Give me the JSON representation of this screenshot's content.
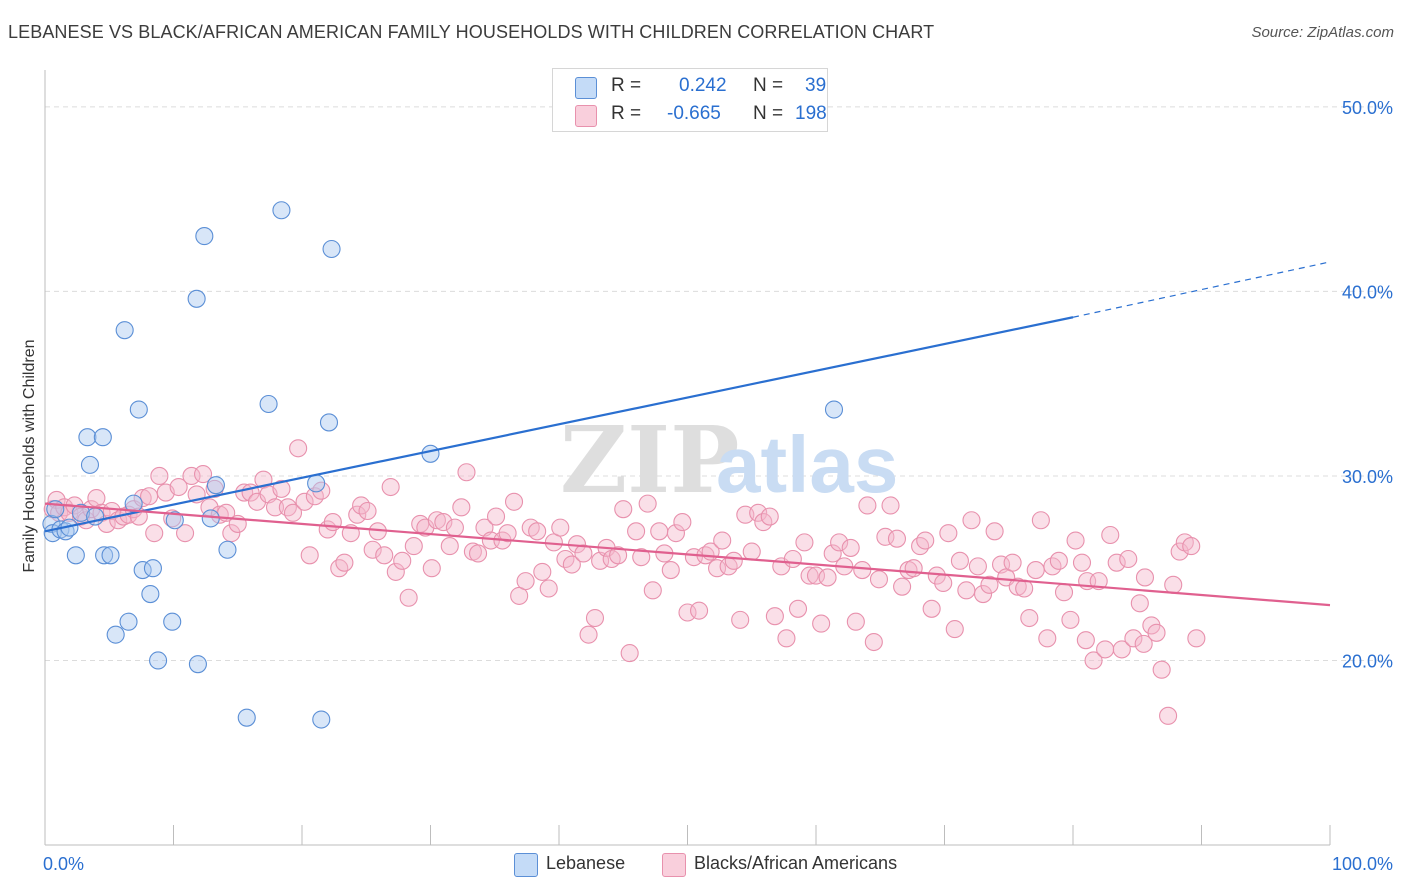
{
  "title": "LEBANESE VS BLACK/AFRICAN AMERICAN FAMILY HOUSEHOLDS WITH CHILDREN CORRELATION CHART",
  "source": "Source: ZipAtlas.com",
  "watermark": {
    "zip": "ZIP",
    "atlas": "atlas"
  },
  "legend_stats": [
    {
      "r_label": "R =",
      "r_value": "0.242",
      "n_label": "N =",
      "n_value": "39",
      "color": "#a8c8f0"
    },
    {
      "r_label": "R =",
      "r_value": "-0.665",
      "n_label": "N =",
      "n_value": "198",
      "color": "#f5b8cb"
    }
  ],
  "legend_bottom": [
    {
      "name": "Lebanese",
      "color": "#a8c8f0"
    },
    {
      "name": "Blacks/African Americans",
      "color": "#f5b8cb"
    }
  ],
  "chart_data": {
    "type": "scatter",
    "title": "LEBANESE VS BLACK/AFRICAN AMERICAN FAMILY HOUSEHOLDS WITH CHILDREN CORRELATION CHART",
    "xlabel": "",
    "ylabel": "Family Households with Children",
    "x_tick_labels": [
      "0.0%",
      "100.0%"
    ],
    "y_tick_labels": [
      "20.0%",
      "30.0%",
      "40.0%",
      "50.0%"
    ],
    "xlim": [
      0,
      100
    ],
    "ylim": [
      10,
      52
    ],
    "y_ticks": [
      20,
      30,
      40,
      50
    ],
    "grid": true,
    "legend_placement": "top-center",
    "series": [
      {
        "name": "Lebanese",
        "color": "#a8c8f0",
        "stroke": "#5b8fd6",
        "trend": {
          "x": [
            0,
            80
          ],
          "y": [
            27.0,
            38.6
          ],
          "dashed_to": [
            100,
            41.6
          ],
          "color": "#2a6fd0"
        },
        "points": [
          [
            0.5,
            27.4
          ],
          [
            0.6,
            26.9
          ],
          [
            0.8,
            28.2
          ],
          [
            1.2,
            27.1
          ],
          [
            1.6,
            27.0
          ],
          [
            1.9,
            27.2
          ],
          [
            2.4,
            25.7
          ],
          [
            2.8,
            28.0
          ],
          [
            3.3,
            32.1
          ],
          [
            3.5,
            30.6
          ],
          [
            3.9,
            27.8
          ],
          [
            4.5,
            32.1
          ],
          [
            4.6,
            25.7
          ],
          [
            5.1,
            25.7
          ],
          [
            5.5,
            21.4
          ],
          [
            6.2,
            37.9
          ],
          [
            6.9,
            28.5
          ],
          [
            7.3,
            33.6
          ],
          [
            7.6,
            24.9
          ],
          [
            8.2,
            23.6
          ],
          [
            8.4,
            25.0
          ],
          [
            8.8,
            20.0
          ],
          [
            9.9,
            22.1
          ],
          [
            10.1,
            27.6
          ],
          [
            11.8,
            39.6
          ],
          [
            11.9,
            19.8
          ],
          [
            12.4,
            43.0
          ],
          [
            12.9,
            27.7
          ],
          [
            13.3,
            29.5
          ],
          [
            14.2,
            26.0
          ],
          [
            15.7,
            16.9
          ],
          [
            17.4,
            33.9
          ],
          [
            18.4,
            44.4
          ],
          [
            21.1,
            29.6
          ],
          [
            21.5,
            16.8
          ],
          [
            22.1,
            32.9
          ],
          [
            22.3,
            42.3
          ],
          [
            30.0,
            31.2
          ],
          [
            61.4,
            33.6
          ],
          [
            6.5,
            22.1
          ]
        ]
      },
      {
        "name": "Blacks/African Americans",
        "color": "#f5b8cb",
        "stroke": "#e891ad",
        "trend": {
          "x": [
            0,
            100
          ],
          "y": [
            28.5,
            23.0
          ],
          "color": "#e0608f"
        },
        "points": [
          [
            0.6,
            28.2
          ],
          [
            0.9,
            28.7
          ],
          [
            1.1,
            28.0
          ],
          [
            1.5,
            28.3
          ],
          [
            1.9,
            28.0
          ],
          [
            2.3,
            28.4
          ],
          [
            2.8,
            27.8
          ],
          [
            3.2,
            27.6
          ],
          [
            3.6,
            28.2
          ],
          [
            4.0,
            28.8
          ],
          [
            4.4,
            28.0
          ],
          [
            4.8,
            27.4
          ],
          [
            5.2,
            28.1
          ],
          [
            5.7,
            27.6
          ],
          [
            6.1,
            27.8
          ],
          [
            6.5,
            27.9
          ],
          [
            6.9,
            28.2
          ],
          [
            7.3,
            27.8
          ],
          [
            7.6,
            28.8
          ],
          [
            8.1,
            28.9
          ],
          [
            8.5,
            26.9
          ],
          [
            8.9,
            30.0
          ],
          [
            9.4,
            29.1
          ],
          [
            9.9,
            27.7
          ],
          [
            10.4,
            29.4
          ],
          [
            10.9,
            26.9
          ],
          [
            11.4,
            30.0
          ],
          [
            11.8,
            29.0
          ],
          [
            12.3,
            30.1
          ],
          [
            12.8,
            28.3
          ],
          [
            13.2,
            29.3
          ],
          [
            13.6,
            27.9
          ],
          [
            14.1,
            28.0
          ],
          [
            14.5,
            26.9
          ],
          [
            15.0,
            27.4
          ],
          [
            15.5,
            29.1
          ],
          [
            16.0,
            29.1
          ],
          [
            16.5,
            28.6
          ],
          [
            17.0,
            29.8
          ],
          [
            17.4,
            29.0
          ],
          [
            17.9,
            28.3
          ],
          [
            18.4,
            29.3
          ],
          [
            18.9,
            28.3
          ],
          [
            19.3,
            28.0
          ],
          [
            19.7,
            31.5
          ],
          [
            20.2,
            28.6
          ],
          [
            20.6,
            25.7
          ],
          [
            21.0,
            28.9
          ],
          [
            21.5,
            29.2
          ],
          [
            22.0,
            27.1
          ],
          [
            22.4,
            27.5
          ],
          [
            22.9,
            25.0
          ],
          [
            23.3,
            25.3
          ],
          [
            23.8,
            26.9
          ],
          [
            24.3,
            27.9
          ],
          [
            24.6,
            28.4
          ],
          [
            25.1,
            28.1
          ],
          [
            25.5,
            26.0
          ],
          [
            25.9,
            27.0
          ],
          [
            26.4,
            25.7
          ],
          [
            26.9,
            29.4
          ],
          [
            27.3,
            24.8
          ],
          [
            27.8,
            25.4
          ],
          [
            28.3,
            23.4
          ],
          [
            28.7,
            26.2
          ],
          [
            29.2,
            27.4
          ],
          [
            29.6,
            27.2
          ],
          [
            30.1,
            25.0
          ],
          [
            30.5,
            27.6
          ],
          [
            31.0,
            27.5
          ],
          [
            31.5,
            26.2
          ],
          [
            31.9,
            27.2
          ],
          [
            32.4,
            28.3
          ],
          [
            32.8,
            30.2
          ],
          [
            33.3,
            25.9
          ],
          [
            33.7,
            25.8
          ],
          [
            34.2,
            27.2
          ],
          [
            34.7,
            26.5
          ],
          [
            35.1,
            27.8
          ],
          [
            35.6,
            26.5
          ],
          [
            36.0,
            26.9
          ],
          [
            36.5,
            28.6
          ],
          [
            36.9,
            23.5
          ],
          [
            37.4,
            24.3
          ],
          [
            37.8,
            27.2
          ],
          [
            38.3,
            27.0
          ],
          [
            38.7,
            24.8
          ],
          [
            39.2,
            23.9
          ],
          [
            39.6,
            26.4
          ],
          [
            40.1,
            27.2
          ],
          [
            40.5,
            25.5
          ],
          [
            41.0,
            25.2
          ],
          [
            41.4,
            26.3
          ],
          [
            41.9,
            25.8
          ],
          [
            42.3,
            21.4
          ],
          [
            42.8,
            22.3
          ],
          [
            43.2,
            25.4
          ],
          [
            43.7,
            26.1
          ],
          [
            44.1,
            25.5
          ],
          [
            44.6,
            25.7
          ],
          [
            45.0,
            28.2
          ],
          [
            45.5,
            20.4
          ],
          [
            46.0,
            27.0
          ],
          [
            46.4,
            25.6
          ],
          [
            46.9,
            28.5
          ],
          [
            47.3,
            23.8
          ],
          [
            47.8,
            27.0
          ],
          [
            48.2,
            25.8
          ],
          [
            48.7,
            24.9
          ],
          [
            49.1,
            26.9
          ],
          [
            49.6,
            27.5
          ],
          [
            50.0,
            22.6
          ],
          [
            50.5,
            25.6
          ],
          [
            50.9,
            22.7
          ],
          [
            51.4,
            25.7
          ],
          [
            51.8,
            25.9
          ],
          [
            52.3,
            25.0
          ],
          [
            52.7,
            26.5
          ],
          [
            53.2,
            25.1
          ],
          [
            53.6,
            25.4
          ],
          [
            54.1,
            22.2
          ],
          [
            54.5,
            27.9
          ],
          [
            55.0,
            25.9
          ],
          [
            55.5,
            28.0
          ],
          [
            55.9,
            27.5
          ],
          [
            56.4,
            27.8
          ],
          [
            56.8,
            22.4
          ],
          [
            57.3,
            25.1
          ],
          [
            57.7,
            21.2
          ],
          [
            58.2,
            25.5
          ],
          [
            58.6,
            22.8
          ],
          [
            59.1,
            26.4
          ],
          [
            59.5,
            24.6
          ],
          [
            60.0,
            24.6
          ],
          [
            60.4,
            22.0
          ],
          [
            60.9,
            24.5
          ],
          [
            61.3,
            25.8
          ],
          [
            61.8,
            26.4
          ],
          [
            62.2,
            25.1
          ],
          [
            62.7,
            26.1
          ],
          [
            63.1,
            22.1
          ],
          [
            63.6,
            24.9
          ],
          [
            64.0,
            28.4
          ],
          [
            64.5,
            21.0
          ],
          [
            64.9,
            24.4
          ],
          [
            65.4,
            26.7
          ],
          [
            65.8,
            28.4
          ],
          [
            66.3,
            26.6
          ],
          [
            66.7,
            24.0
          ],
          [
            67.2,
            24.9
          ],
          [
            67.6,
            25.0
          ],
          [
            68.1,
            26.2
          ],
          [
            68.5,
            26.5
          ],
          [
            69.0,
            22.8
          ],
          [
            69.4,
            24.6
          ],
          [
            69.9,
            24.2
          ],
          [
            70.3,
            26.9
          ],
          [
            70.8,
            21.7
          ],
          [
            71.2,
            25.4
          ],
          [
            71.7,
            23.8
          ],
          [
            72.1,
            27.6
          ],
          [
            72.6,
            25.1
          ],
          [
            73.0,
            23.6
          ],
          [
            73.5,
            24.1
          ],
          [
            73.9,
            27.0
          ],
          [
            74.4,
            25.2
          ],
          [
            74.8,
            24.5
          ],
          [
            75.3,
            25.3
          ],
          [
            75.7,
            24.0
          ],
          [
            76.2,
            23.9
          ],
          [
            76.6,
            22.3
          ],
          [
            77.1,
            24.9
          ],
          [
            77.5,
            27.6
          ],
          [
            78.0,
            21.2
          ],
          [
            78.4,
            25.1
          ],
          [
            78.9,
            25.4
          ],
          [
            79.3,
            23.7
          ],
          [
            79.8,
            22.2
          ],
          [
            80.2,
            26.5
          ],
          [
            80.7,
            25.3
          ],
          [
            81.1,
            24.3
          ],
          [
            81.6,
            20.0
          ],
          [
            82.0,
            24.3
          ],
          [
            82.5,
            20.6
          ],
          [
            82.9,
            26.8
          ],
          [
            83.4,
            25.3
          ],
          [
            83.8,
            20.6
          ],
          [
            84.3,
            25.5
          ],
          [
            84.7,
            21.2
          ],
          [
            85.2,
            23.1
          ],
          [
            85.6,
            24.5
          ],
          [
            86.1,
            21.9
          ],
          [
            86.5,
            21.5
          ],
          [
            86.9,
            19.5
          ],
          [
            87.4,
            17.0
          ],
          [
            87.8,
            24.1
          ],
          [
            88.3,
            25.9
          ],
          [
            88.7,
            26.4
          ],
          [
            89.2,
            26.2
          ],
          [
            89.6,
            21.2
          ],
          [
            85.5,
            20.9
          ],
          [
            81.0,
            21.1
          ]
        ]
      }
    ]
  }
}
